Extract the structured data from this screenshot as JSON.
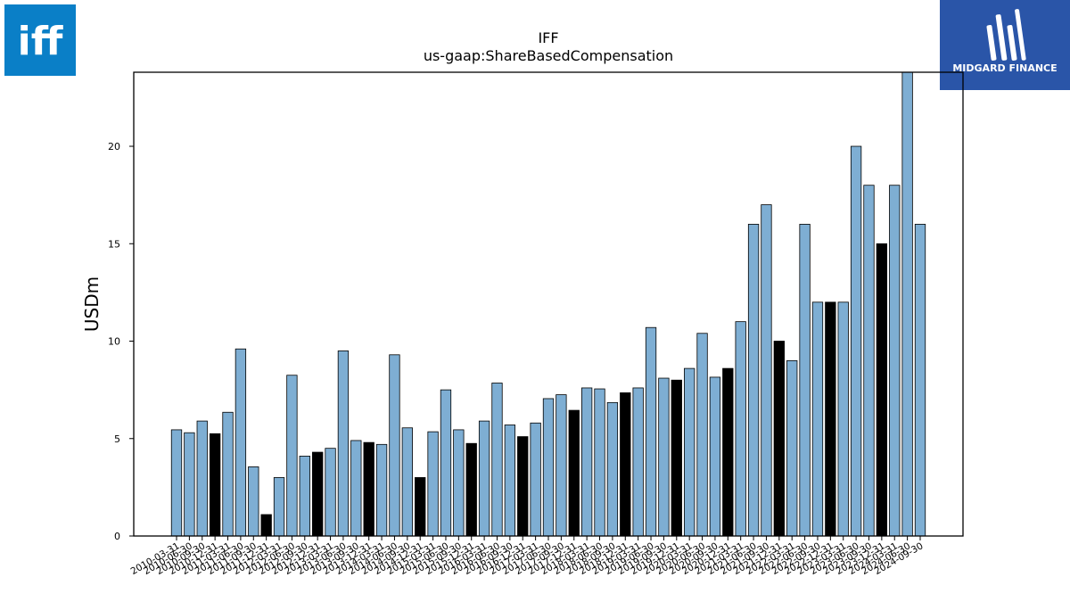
{
  "branding": {
    "left_logo_text": "iff",
    "right_logo_text": "MIDGARD FINANCE",
    "left_logo_color": "#0a7fc7",
    "right_logo_color": "#2a55a8"
  },
  "chart_data": {
    "type": "bar",
    "title": "IFF",
    "subtitle": "us-gaap:ShareBasedCompensation",
    "xlabel": "",
    "ylabel": "USDm",
    "ylim": [
      0,
      23.8
    ],
    "yticks": [
      0,
      5,
      10,
      15,
      20
    ],
    "grid": false,
    "colors": {
      "default": "#7eaed3",
      "highlight": "#000000"
    },
    "categories": [
      "2010-03-31",
      "2010-06-30",
      "2010-09-30",
      "2010-12-31",
      "2011-03-31",
      "2011-06-30",
      "2011-09-30",
      "2011-12-31",
      "2012-03-31",
      "2012-06-30",
      "2012-09-30",
      "2012-12-31",
      "2013-03-31",
      "2013-06-30",
      "2013-09-30",
      "2013-12-31",
      "2014-03-31",
      "2014-06-30",
      "2014-09-30",
      "2014-12-31",
      "2015-03-31",
      "2015-06-30",
      "2015-09-30",
      "2015-12-31",
      "2016-03-31",
      "2016-06-30",
      "2016-09-30",
      "2016-12-31",
      "2017-03-31",
      "2017-06-30",
      "2017-09-30",
      "2017-12-31",
      "2018-03-31",
      "2018-06-30",
      "2018-09-30",
      "2018-12-31",
      "2019-03-31",
      "2019-06-30",
      "2019-09-30",
      "2019-12-31",
      "2020-03-31",
      "2020-06-30",
      "2020-09-30",
      "2020-12-31",
      "2021-03-31",
      "2021-06-30",
      "2021-09-30",
      "2021-12-31",
      "2022-03-31",
      "2022-06-30",
      "2022-09-30",
      "2022-12-31",
      "2023-03-31",
      "2023-06-30",
      "2023-09-30",
      "2023-12-31",
      "2024-03-31",
      "2024-06-30",
      "2024-09-30"
    ],
    "values": [
      5.45,
      5.3,
      5.9,
      5.25,
      6.35,
      9.6,
      3.55,
      1.1,
      3.0,
      8.25,
      4.1,
      4.3,
      4.5,
      9.5,
      4.9,
      4.8,
      4.7,
      9.3,
      5.55,
      3.0,
      5.35,
      7.5,
      5.45,
      4.75,
      5.9,
      7.85,
      5.7,
      5.1,
      5.8,
      7.05,
      7.25,
      6.45,
      7.6,
      7.55,
      6.85,
      7.35,
      7.6,
      10.7,
      8.1,
      8.0,
      8.6,
      10.4,
      8.15,
      8.6,
      11.0,
      16.0,
      17.0,
      10.0,
      9.0,
      16.0,
      12.0,
      12.0,
      12.0,
      20.0,
      18.0,
      15.0,
      18.0,
      24.0,
      16.0
    ],
    "highlight": [
      false,
      false,
      false,
      true,
      false,
      false,
      false,
      true,
      false,
      false,
      false,
      true,
      false,
      false,
      false,
      true,
      false,
      false,
      false,
      true,
      false,
      false,
      false,
      true,
      false,
      false,
      false,
      true,
      false,
      false,
      false,
      true,
      false,
      false,
      false,
      true,
      false,
      false,
      false,
      true,
      false,
      false,
      false,
      true,
      false,
      false,
      false,
      true,
      false,
      false,
      false,
      true,
      false,
      false,
      false,
      true,
      false,
      false,
      false
    ]
  }
}
